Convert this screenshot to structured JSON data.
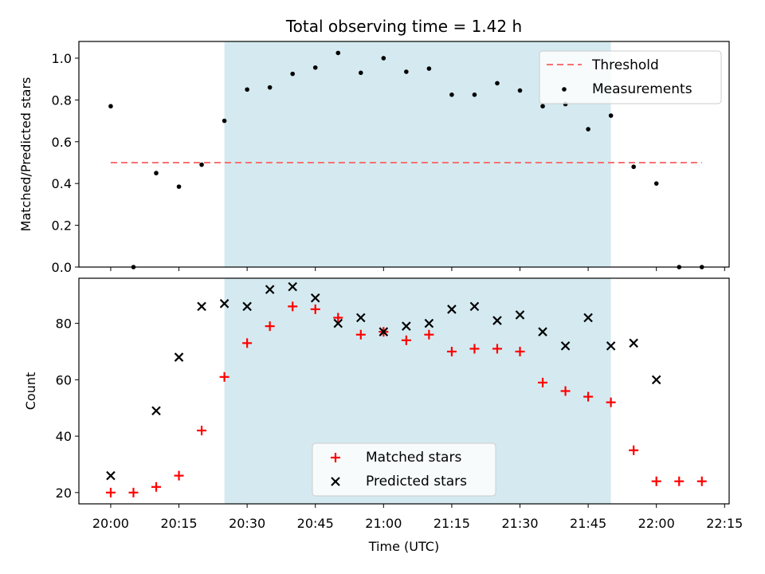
{
  "title": "Total observing time = 1.42 h",
  "chart_data": [
    {
      "type": "scatter",
      "panel": "top",
      "ylabel": "Matched/Predicted stars",
      "ylim": [
        0,
        1.08
      ],
      "yticks": [
        0.0,
        0.2,
        0.4,
        0.6,
        0.8,
        1.0
      ],
      "ytick_labels": [
        "0.0",
        "0.2",
        "0.4",
        "0.6",
        "0.8",
        "1.0"
      ],
      "xlim": [
        "19:53",
        "22:16"
      ],
      "shaded_region": {
        "from": "20:25",
        "to": "21:50",
        "color": "#d4eaf0"
      },
      "threshold": {
        "name": "Threshold",
        "value": 0.5,
        "from": "20:00",
        "to": "22:10",
        "color": "#f87171"
      },
      "series": [
        {
          "name": "Measurements",
          "color": "#000000",
          "x": [
            "20:00",
            "20:05",
            "20:10",
            "20:15",
            "20:20",
            "20:25",
            "20:30",
            "20:35",
            "20:40",
            "20:45",
            "20:50",
            "20:55",
            "21:00",
            "21:05",
            "21:10",
            "21:15",
            "21:20",
            "21:25",
            "21:30",
            "21:35",
            "21:40",
            "21:45",
            "21:50",
            "21:55",
            "22:00",
            "22:05",
            "22:10"
          ],
          "y": [
            0.77,
            0.0,
            0.45,
            0.385,
            0.49,
            0.7,
            0.85,
            0.86,
            0.925,
            0.955,
            1.025,
            0.93,
            1.0,
            0.935,
            0.95,
            0.825,
            0.825,
            0.88,
            0.845,
            0.77,
            0.78,
            0.66,
            0.725,
            0.48,
            0.4,
            0.0,
            0.0
          ]
        }
      ],
      "legend": {
        "placement": "upper right",
        "entries": [
          "Threshold",
          "Measurements"
        ]
      }
    },
    {
      "type": "scatter",
      "panel": "bottom",
      "xlabel": "Time (UTC)",
      "ylabel": "Count",
      "ylim": [
        16,
        96
      ],
      "yticks": [
        20,
        40,
        60,
        80
      ],
      "ytick_labels": [
        "20",
        "40",
        "60",
        "80"
      ],
      "xlim": [
        "19:53",
        "22:16"
      ],
      "xticks": [
        "20:00",
        "20:15",
        "20:30",
        "20:45",
        "21:00",
        "21:15",
        "21:30",
        "21:45",
        "22:00",
        "22:15"
      ],
      "xtick_labels": [
        "20:00",
        "20:15",
        "20:30",
        "20:45",
        "21:00",
        "21:15",
        "21:30",
        "21:45",
        "22:00",
        "22:15"
      ],
      "shaded_region": {
        "from": "20:25",
        "to": "21:50",
        "color": "#d4eaf0"
      },
      "series": [
        {
          "name": "Matched stars",
          "marker": "+",
          "color": "#ff0000",
          "x": [
            "20:00",
            "20:05",
            "20:10",
            "20:15",
            "20:20",
            "20:25",
            "20:30",
            "20:35",
            "20:40",
            "20:45",
            "20:50",
            "20:55",
            "21:00",
            "21:05",
            "21:10",
            "21:15",
            "21:20",
            "21:25",
            "21:30",
            "21:35",
            "21:40",
            "21:45",
            "21:50",
            "21:55",
            "22:00",
            "22:05",
            "22:10"
          ],
          "y": [
            20,
            20,
            22,
            26,
            42,
            61,
            73,
            79,
            86,
            85,
            82,
            76,
            77,
            74,
            76,
            70,
            71,
            71,
            70,
            59,
            56,
            54,
            52,
            35,
            24,
            24,
            24
          ]
        },
        {
          "name": "Predicted stars",
          "marker": "x",
          "color": "#000000",
          "x": [
            "20:00",
            "20:10",
            "20:15",
            "20:20",
            "20:25",
            "20:30",
            "20:35",
            "20:40",
            "20:45",
            "20:50",
            "20:55",
            "21:00",
            "21:05",
            "21:10",
            "21:15",
            "21:20",
            "21:25",
            "21:30",
            "21:35",
            "21:40",
            "21:45",
            "21:50",
            "21:55",
            "22:00"
          ],
          "y": [
            26,
            49,
            68,
            86,
            87,
            86,
            92,
            93,
            89,
            80,
            82,
            77,
            79,
            80,
            85,
            86,
            81,
            83,
            77,
            72,
            82,
            72,
            73,
            60
          ]
        }
      ],
      "legend": {
        "placement": "lower center",
        "entries": [
          "Matched stars",
          "Predicted stars"
        ]
      }
    }
  ]
}
